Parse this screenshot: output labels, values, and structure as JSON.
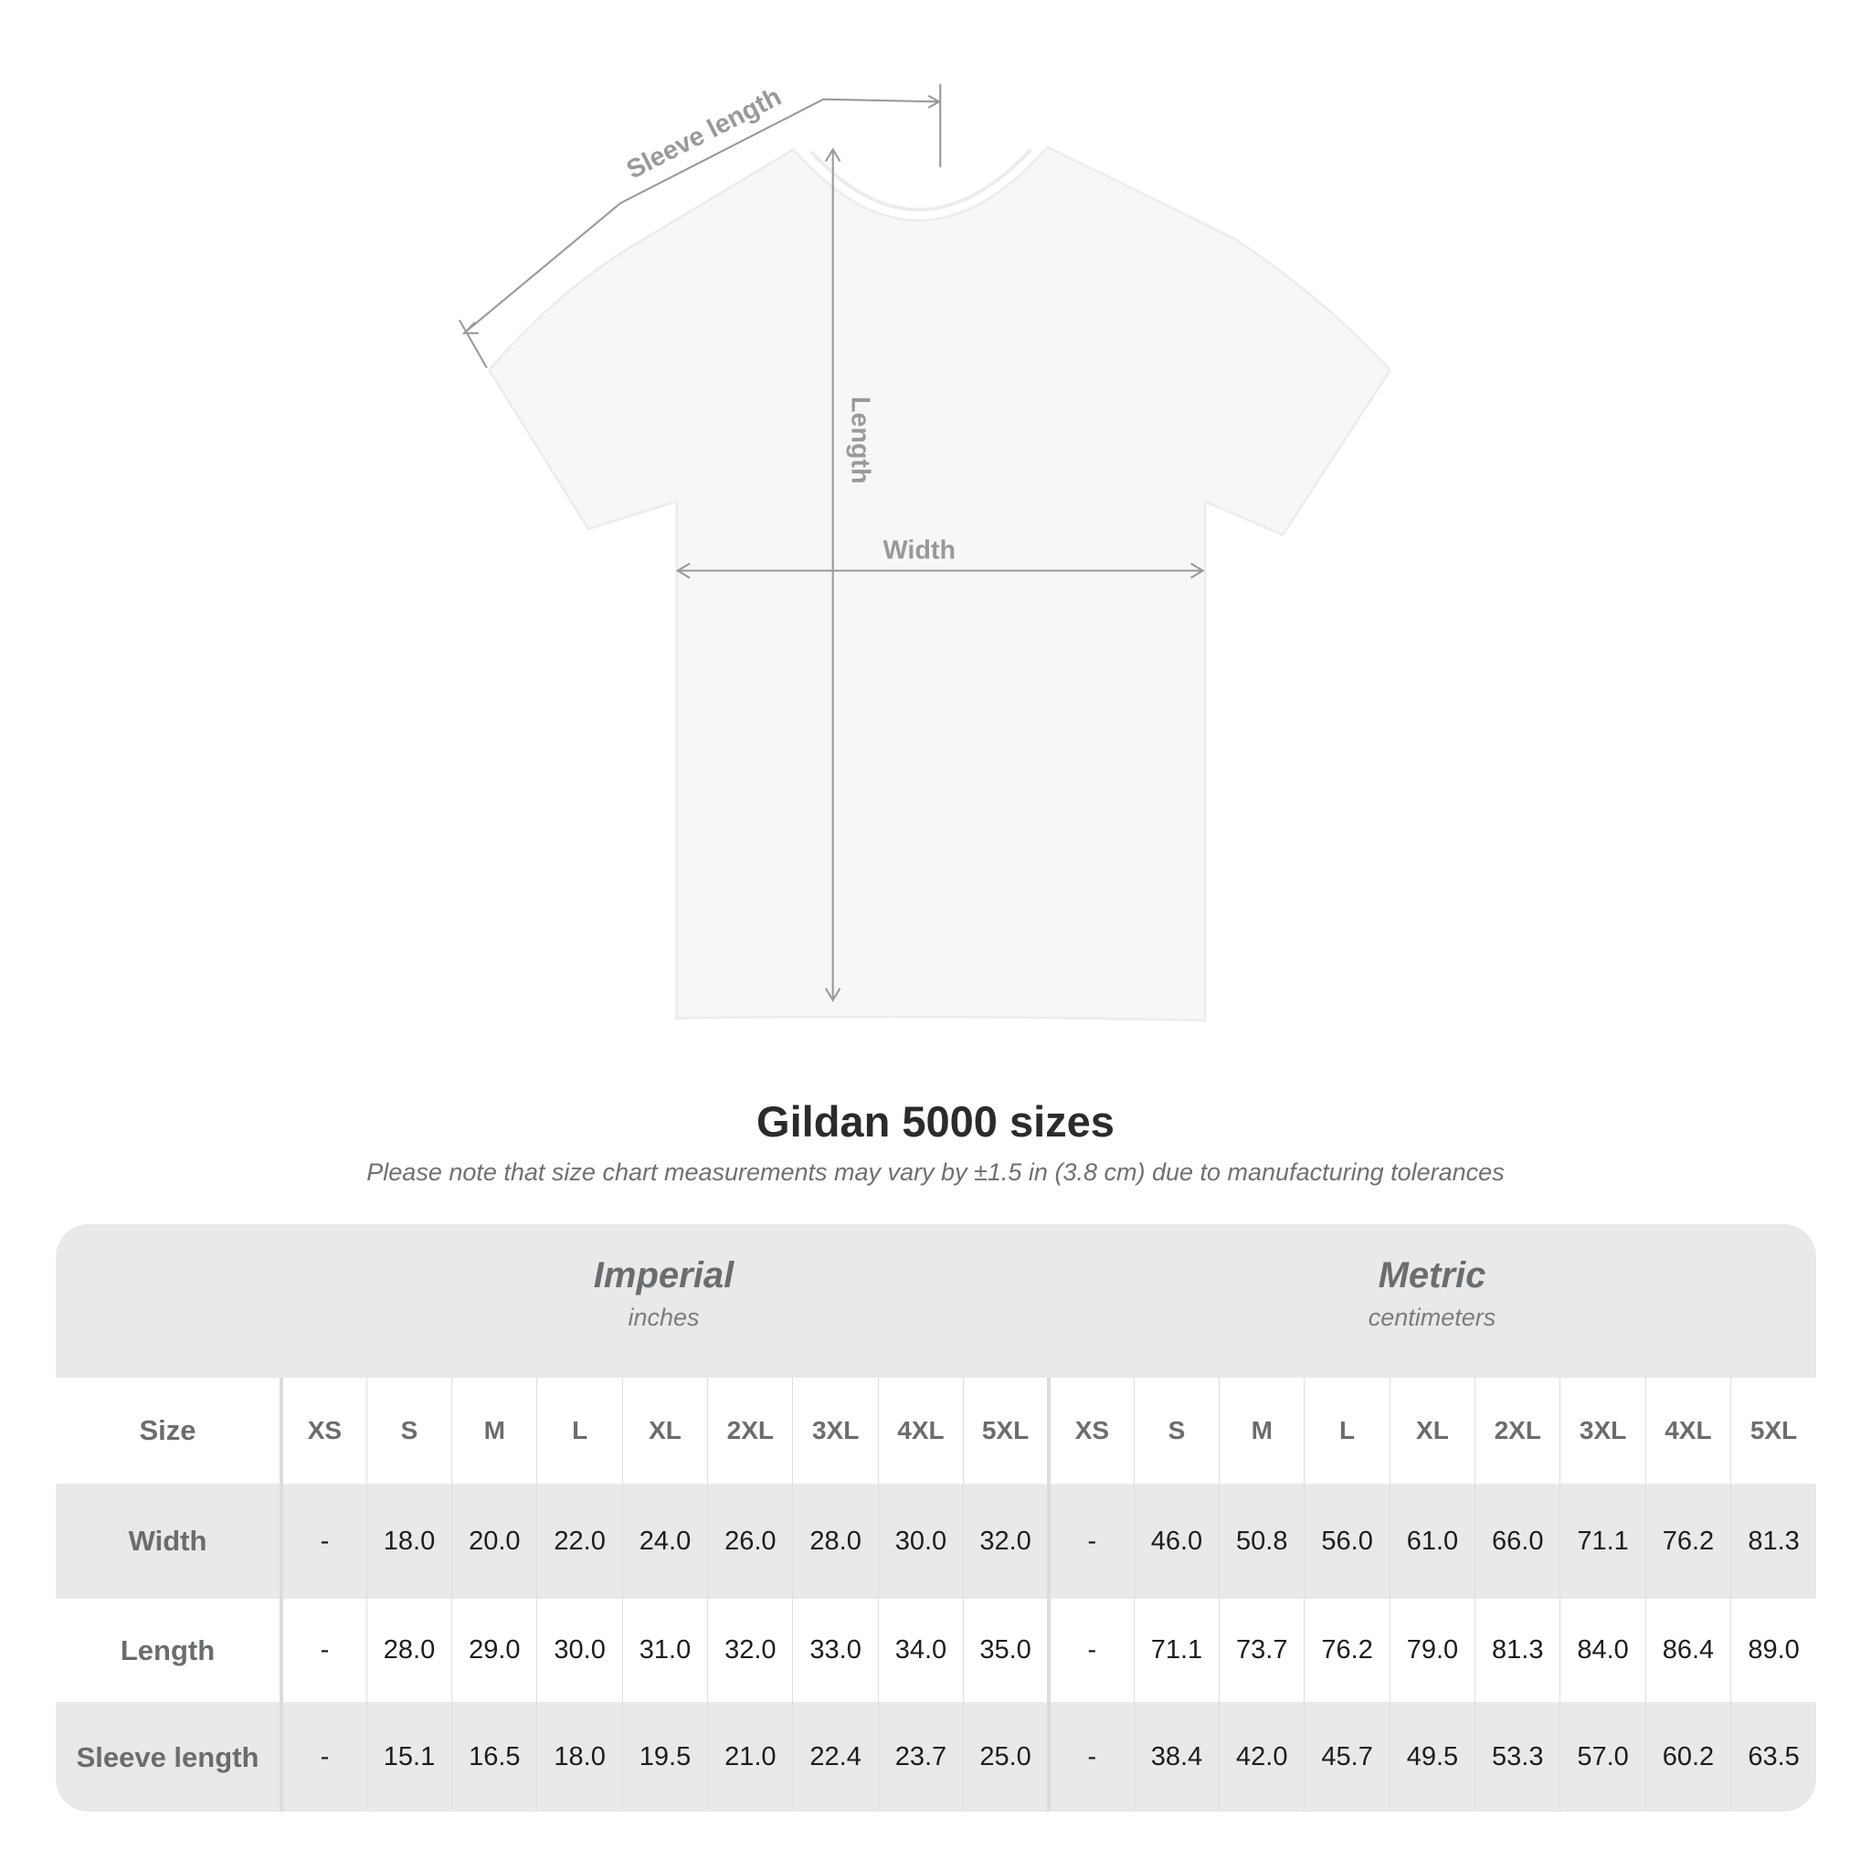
{
  "diagram": {
    "labels": {
      "sleeve": "Sleeve length",
      "length": "Length",
      "width": "Width"
    },
    "shirt_color": "#f7f7f7",
    "arrow_color": "#999999"
  },
  "header": {
    "title": "Gildan 5000 sizes",
    "subtitle": "Please note that size chart measurements may vary by ±1.5 in (3.8 cm) due to manufacturing tolerances"
  },
  "table": {
    "imperial": {
      "name": "Imperial",
      "unit": "inches"
    },
    "metric": {
      "name": "Metric",
      "unit": "centimeters"
    },
    "size_label": "Size",
    "sizes": [
      "XS",
      "S",
      "M",
      "L",
      "XL",
      "2XL",
      "3XL",
      "4XL",
      "5XL"
    ],
    "rows": [
      {
        "label": "Width",
        "imperial": [
          "-",
          "18.0",
          "20.0",
          "22.0",
          "24.0",
          "26.0",
          "28.0",
          "30.0",
          "32.0"
        ],
        "metric": [
          "-",
          "46.0",
          "50.8",
          "56.0",
          "61.0",
          "66.0",
          "71.1",
          "76.2",
          "81.3"
        ]
      },
      {
        "label": "Length",
        "imperial": [
          "-",
          "28.0",
          "29.0",
          "30.0",
          "31.0",
          "32.0",
          "33.0",
          "34.0",
          "35.0"
        ],
        "metric": [
          "-",
          "71.1",
          "73.7",
          "76.2",
          "79.0",
          "81.3",
          "84.0",
          "86.4",
          "89.0"
        ]
      },
      {
        "label": "Sleeve length",
        "imperial": [
          "-",
          "15.1",
          "16.5",
          "18.0",
          "19.5",
          "21.0",
          "22.4",
          "23.7",
          "25.0"
        ],
        "metric": [
          "-",
          "38.4",
          "42.0",
          "45.7",
          "49.5",
          "53.3",
          "57.0",
          "60.2",
          "63.5"
        ]
      }
    ]
  }
}
